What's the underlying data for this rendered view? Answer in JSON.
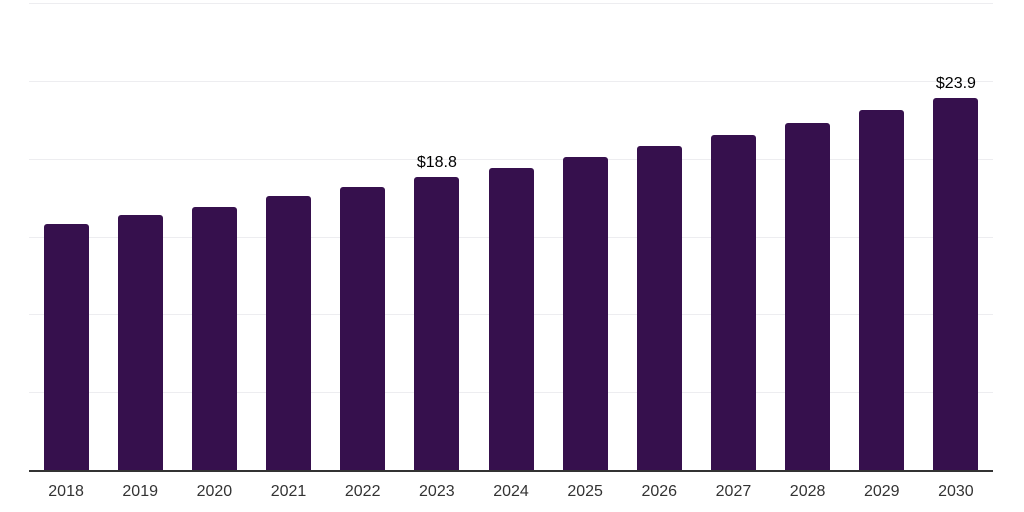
{
  "chart_data": {
    "type": "bar",
    "title": "",
    "xlabel": "",
    "ylabel": "",
    "categories": [
      "2018",
      "2019",
      "2020",
      "2021",
      "2022",
      "2023",
      "2024",
      "2025",
      "2026",
      "2027",
      "2028",
      "2029",
      "2030"
    ],
    "values": [
      15.8,
      16.4,
      16.9,
      17.6,
      18.2,
      18.8,
      19.4,
      20.1,
      20.8,
      21.5,
      22.3,
      23.1,
      23.9
    ],
    "data_labels": [
      "",
      "",
      "",
      "",
      "",
      "$18.8",
      "",
      "",
      "",
      "",
      "",
      "",
      "$23.9"
    ],
    "ylim": [
      0,
      30
    ],
    "gridline_values": [
      5,
      10,
      15,
      20,
      25,
      30
    ],
    "grid": "horizontal",
    "legend": "none",
    "y_tick_labels_visible": false
  },
  "colors": {
    "background": "#ffffff",
    "bar": "#36104D",
    "gridline": "#ededf0",
    "axis_line": "#333333",
    "tick_label": "#333333",
    "data_label": "#000000"
  }
}
